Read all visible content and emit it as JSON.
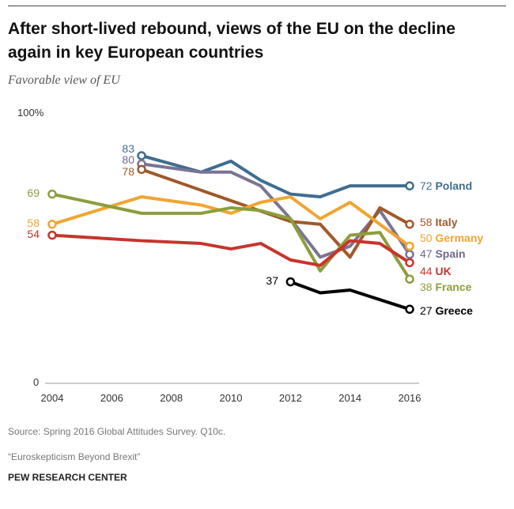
{
  "chart_data": {
    "type": "line",
    "title": "After short-lived rebound, views of the EU on the decline again in key European countries",
    "subtitle": "Favorable view of EU",
    "ylim": [
      0,
      100
    ],
    "y_tick_labels": [
      "100%",
      "0"
    ],
    "xlim": [
      2004,
      2016
    ],
    "x_ticks": [
      "2004",
      "2006",
      "2008",
      "2010",
      "2012",
      "2014",
      "2016"
    ],
    "series": [
      {
        "name": "Poland",
        "color": "#3e6e8e",
        "labelColor": "#3e6e8e",
        "points": [
          [
            2007,
            83
          ],
          [
            2009,
            77
          ],
          [
            2010,
            81
          ],
          [
            2011,
            74
          ],
          [
            2012,
            69
          ],
          [
            2013,
            68
          ],
          [
            2014,
            72
          ],
          [
            2015,
            72
          ],
          [
            2016,
            72
          ]
        ],
        "start_label": "83",
        "end_label": "72"
      },
      {
        "name": "Spain",
        "color": "#7b7394",
        "labelColor": "#6e6890",
        "points": [
          [
            2007,
            80
          ],
          [
            2009,
            77
          ],
          [
            2010,
            77
          ],
          [
            2011,
            72
          ],
          [
            2012,
            60
          ],
          [
            2013,
            46
          ],
          [
            2014,
            50
          ],
          [
            2015,
            63
          ],
          [
            2016,
            47
          ]
        ],
        "start_label": "80",
        "end_label": "47"
      },
      {
        "name": "Italy",
        "color": "#a0592a",
        "labelColor": "#a0592a",
        "points": [
          [
            2007,
            78
          ],
          [
            2012,
            59
          ],
          [
            2013,
            58
          ],
          [
            2014,
            46
          ],
          [
            2015,
            64
          ],
          [
            2016,
            58
          ]
        ],
        "start_label": "78",
        "end_label": "58"
      },
      {
        "name": "Germany",
        "color": "#f0a531",
        "labelColor": "#f0a531",
        "points": [
          [
            2004,
            58
          ],
          [
            2007,
            68
          ],
          [
            2009,
            65
          ],
          [
            2010,
            62
          ],
          [
            2011,
            66
          ],
          [
            2012,
            68
          ],
          [
            2013,
            60
          ],
          [
            2014,
            66
          ],
          [
            2015,
            58
          ],
          [
            2016,
            50
          ]
        ],
        "start_label": "58",
        "end_label": "50"
      },
      {
        "name": "France",
        "color": "#8c9e3c",
        "labelColor": "#8c9e3c",
        "points": [
          [
            2004,
            69
          ],
          [
            2007,
            62
          ],
          [
            2009,
            62
          ],
          [
            2010,
            64
          ],
          [
            2011,
            63
          ],
          [
            2012,
            60
          ],
          [
            2013,
            41
          ],
          [
            2014,
            54
          ],
          [
            2015,
            55
          ],
          [
            2016,
            38
          ]
        ],
        "start_label": "69",
        "end_label": "38"
      },
      {
        "name": "UK",
        "color": "#c8342b",
        "labelColor": "#c8342b",
        "points": [
          [
            2004,
            54
          ],
          [
            2007,
            52
          ],
          [
            2009,
            51
          ],
          [
            2010,
            49
          ],
          [
            2011,
            51
          ],
          [
            2012,
            45
          ],
          [
            2013,
            43
          ],
          [
            2014,
            52
          ],
          [
            2015,
            51
          ],
          [
            2016,
            44
          ]
        ],
        "start_label": "54",
        "end_label": "44"
      },
      {
        "name": "Greece",
        "color": "#000000",
        "labelColor": "#000000",
        "points": [
          [
            2012,
            37
          ],
          [
            2013,
            33
          ],
          [
            2014,
            34
          ],
          [
            2016,
            27
          ]
        ],
        "start_label": "37",
        "end_label": "27"
      }
    ]
  },
  "source": "Source: Spring 2016 Global Attitudes Survey. Q10c.",
  "report": "“Euroskepticism Beyond Brexit”",
  "org": "PEW RESEARCH CENTER"
}
